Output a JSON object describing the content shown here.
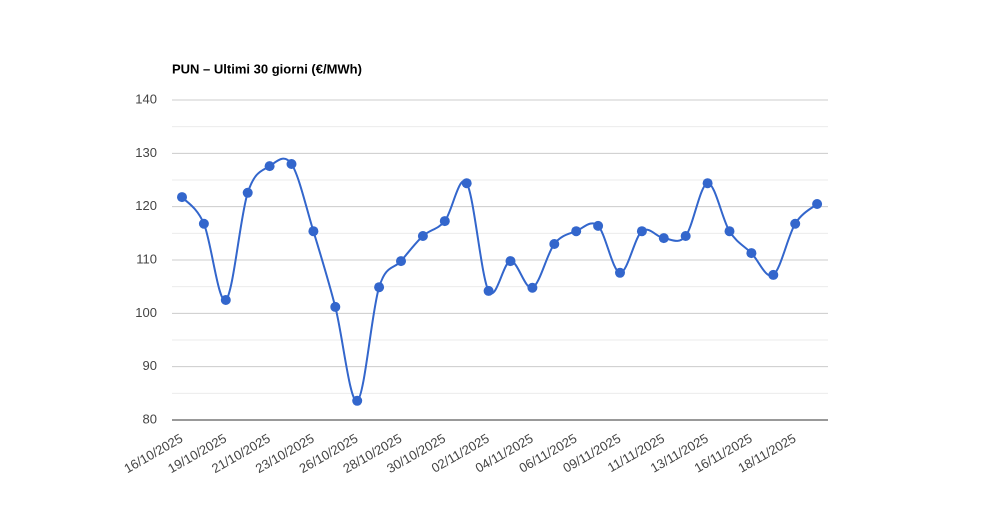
{
  "chart_data": {
    "type": "line",
    "title": "PUN – Ultimi 30 giorni (€/MWh)",
    "categories": [
      "16/10/2025",
      null,
      "19/10/2025",
      null,
      "21/10/2025",
      null,
      "23/10/2025",
      null,
      "26/10/2025",
      null,
      "28/10/2025",
      null,
      "30/10/2025",
      null,
      "02/11/2025",
      null,
      "04/11/2025",
      null,
      "06/11/2025",
      null,
      "09/11/2025",
      null,
      "11/11/2025",
      null,
      "13/11/2025",
      null,
      "16/11/2025",
      null,
      "18/11/2025",
      null
    ],
    "series": [
      {
        "name": "PUN",
        "color": "#3366cc",
        "values": [
          121.8,
          116.8,
          102.5,
          122.6,
          127.6,
          128.0,
          115.4,
          101.2,
          83.6,
          104.9,
          109.8,
          114.5,
          117.3,
          124.4,
          104.2,
          109.8,
          104.8,
          113.0,
          115.4,
          116.4,
          107.6,
          115.4,
          114.1,
          114.5,
          124.4,
          115.4,
          111.3,
          107.2,
          116.8,
          120.5
        ]
      }
    ],
    "ylim": [
      80,
      140
    ],
    "yticks": [
      80,
      90,
      100,
      110,
      120,
      130,
      140
    ],
    "grid": true,
    "smooth": true
  }
}
